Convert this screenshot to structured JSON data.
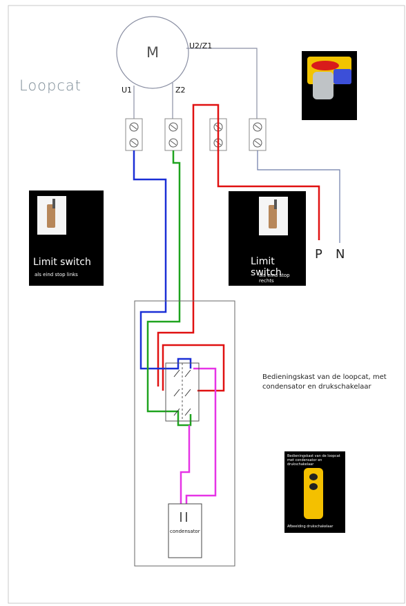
{
  "title": "Loopcat",
  "motor": {
    "symbol": "M",
    "terminals": {
      "u1": "U1",
      "z2": "Z2",
      "u2z1": "U2/Z1"
    }
  },
  "supply": {
    "p": "P",
    "n": "N"
  },
  "limit_switch_left": {
    "title": "Limit switch",
    "subtitle": "als eind stop links"
  },
  "limit_switch_right": {
    "title": "Limit switch",
    "subtitle": "als eind stop rechts"
  },
  "control_box_caption": {
    "line1": "Bedieningskast van de loopcat, met",
    "line2": "condensator en drukschakelaar"
  },
  "capacitor_label": "condensator",
  "pushbutton_photo": {
    "top_text": "Bedieningskast van de loopcat met condensator en drukschakelaar",
    "bottom_text": "Afbeelding drukschakelaar"
  },
  "colors": {
    "blue_wire": "#1a2fd6",
    "green_wire": "#1ea31e",
    "red_wire": "#e01010",
    "magenta_wire": "#e633e6",
    "neutral_wire": "#6b7aa8"
  }
}
